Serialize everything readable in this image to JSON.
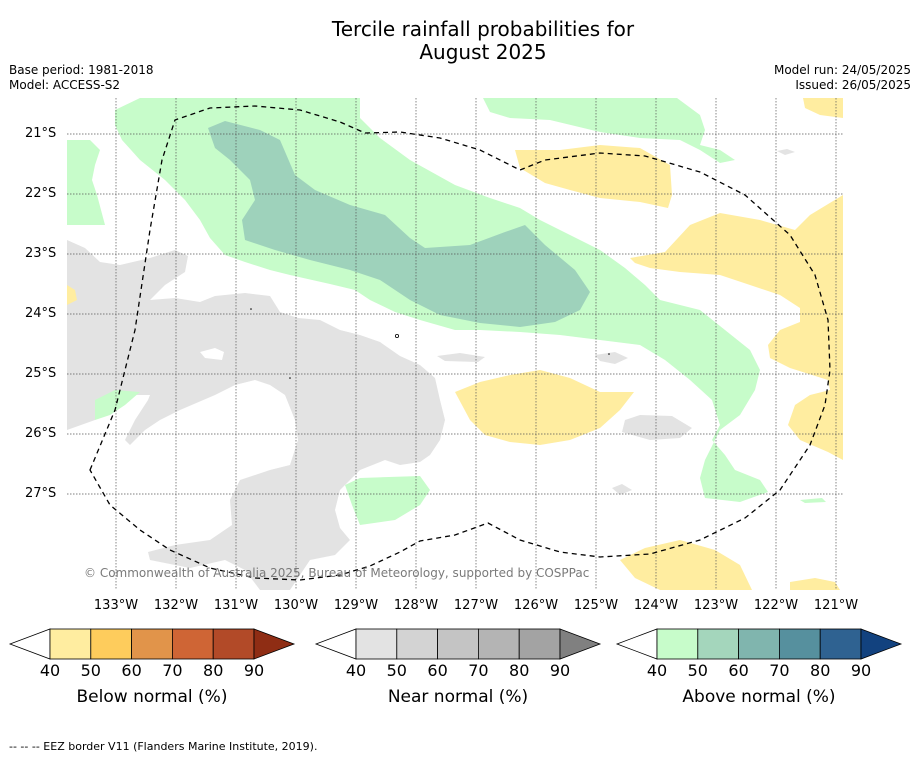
{
  "title_line1": "Tercile rainfall probabilities for",
  "title_line2": "August 2025",
  "base_period": "Base period: 1981-2018",
  "model": "Model: ACCESS-S2",
  "model_run": "Model run: 24/05/2025",
  "issued": "Issued: 26/05/2025",
  "lat_labels": [
    "21°S",
    "22°S",
    "23°S",
    "24°S",
    "25°S",
    "26°S",
    "27°S"
  ],
  "lon_labels": [
    "133°W",
    "132°W",
    "131°W",
    "130°W",
    "129°W",
    "128°W",
    "127°W",
    "126°W",
    "125°W",
    "124°W",
    "123°W",
    "122°W",
    "121°W"
  ],
  "copyright": "© Commonwealth of Australia 2025, Bureau of Meteorology, supported by COSPPac",
  "legends": {
    "below": {
      "title": "Below normal (%)",
      "ticks": [
        "40",
        "50",
        "60",
        "70",
        "80",
        "90"
      ],
      "colors": [
        "#ffffff",
        "#ffeda0",
        "#fecc5c",
        "#e1944a",
        "#cf6535",
        "#b24a28",
        "#8f2d14"
      ]
    },
    "near": {
      "title": "Near normal (%)",
      "ticks": [
        "40",
        "50",
        "60",
        "70",
        "80",
        "90"
      ],
      "colors": [
        "#ffffff",
        "#e3e3e3",
        "#d3d3d3",
        "#c4c4c4",
        "#b4b4b4",
        "#a3a3a3",
        "#808080"
      ]
    },
    "above": {
      "title": "Above normal (%)",
      "ticks": [
        "40",
        "50",
        "60",
        "70",
        "80",
        "90"
      ],
      "colors": [
        "#ffffff",
        "#c7fcca",
        "#a4d6bc",
        "#80b5ae",
        "#56909e",
        "#2f6291",
        "#12427f"
      ]
    }
  },
  "eez_note": "--  --  -- EEZ border V11 (Flanders Marine Institute, 2019)."
}
